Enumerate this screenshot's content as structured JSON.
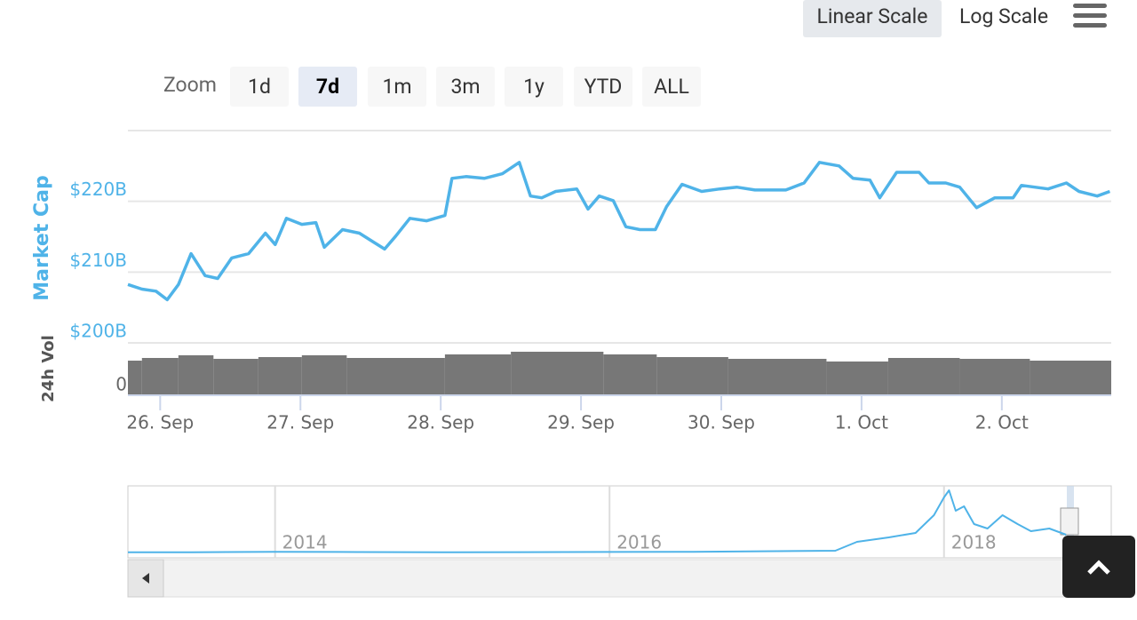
{
  "ui": {
    "scale_buttons": [
      "Linear Scale",
      "Log Scale"
    ],
    "zoom_label": "Zoom",
    "zoom_buttons": [
      "1d",
      "7d",
      "1m",
      "3m",
      "1y",
      "YTD",
      "ALL"
    ]
  },
  "chart_data": [
    {
      "type": "line",
      "y_label": "Market Cap",
      "x": [
        -0.23,
        -0.13,
        -0.03,
        0.05,
        0.13,
        0.22,
        0.32,
        0.41,
        0.51,
        0.63,
        0.75,
        0.82,
        0.9,
        1.01,
        1.11,
        1.17,
        1.3,
        1.42,
        1.52,
        1.6,
        1.68,
        1.78,
        1.9,
        2.03,
        2.08,
        2.18,
        2.31,
        2.44,
        2.56,
        2.64,
        2.72,
        2.82,
        2.97,
        3.05,
        3.13,
        3.23,
        3.32,
        3.42,
        3.53,
        3.61,
        3.72,
        3.86,
        3.99,
        4.11,
        4.24,
        4.34,
        4.46,
        4.59,
        4.7,
        4.84,
        4.94,
        5.06,
        5.13,
        5.25,
        5.41,
        5.48,
        5.6,
        5.7,
        5.82,
        5.95,
        6.08,
        6.14,
        6.33,
        6.46,
        6.55,
        6.68,
        6.77
      ],
      "series": [
        {
          "color": "#4fb3e8",
          "values": [
            208.25,
            207.6,
            207.3,
            206.1,
            208.25,
            212.6,
            209.5,
            209.1,
            212,
            212.6,
            215.5,
            213.9,
            217.6,
            216.75,
            217,
            213.5,
            216,
            215.5,
            214.25,
            213.25,
            215.1,
            217.6,
            217.25,
            218,
            223.25,
            223.5,
            223.25,
            223.9,
            225.5,
            220.75,
            220.5,
            221.4,
            221.75,
            218.9,
            220.75,
            220.1,
            216.4,
            216,
            216,
            219.25,
            222.4,
            221.4,
            221.75,
            222,
            221.6,
            221.6,
            221.6,
            222.6,
            225.5,
            225,
            223.25,
            223,
            220.5,
            224.1,
            224.1,
            222.6,
            222.6,
            222,
            219.1,
            220.5,
            220.5,
            222.25,
            221.75,
            222.6,
            221.4,
            220.75,
            221.4
          ]
        }
      ],
      "xlim": [
        -0.23,
        6.78
      ],
      "ylim": [
        200,
        230
      ],
      "yticks": [
        {
          "value": 200,
          "label": "$200B"
        },
        {
          "value": 210,
          "label": "$210B"
        },
        {
          "value": 220,
          "label": "$220B"
        }
      ],
      "xticks": [
        {
          "value": 0,
          "label": "26. Sep"
        },
        {
          "value": 1,
          "label": "27. Sep"
        },
        {
          "value": 2,
          "label": "28. Sep"
        },
        {
          "value": 3,
          "label": "29. Sep"
        },
        {
          "value": 4,
          "label": "30. Sep"
        },
        {
          "value": 5,
          "label": "1. Oct"
        },
        {
          "value": 6,
          "label": "2. Oct"
        }
      ],
      "grid": true
    },
    {
      "type": "column",
      "y_label": "24h Vol",
      "x": [
        -0.23,
        -0.13,
        0.13,
        0.38,
        0.7,
        1.01,
        1.33,
        2.03,
        2.5,
        3.16,
        3.54,
        4.05,
        4.75,
        5.19,
        5.7,
        6.2
      ],
      "values": [
        65.5,
        70.7,
        75.9,
        69,
        72.4,
        75.9,
        70.7,
        77.6,
        82.8,
        77.6,
        72.4,
        69,
        63.8,
        70.7,
        69,
        65.5
      ],
      "color": "#777777",
      "xlim": [
        -0.23,
        6.78
      ],
      "ylim": [
        0,
        100
      ],
      "yticks": [
        0
      ]
    },
    {
      "type": "line",
      "x": [
        2013.12,
        2013.5,
        2014.0,
        2014.5,
        2015.0,
        2015.5,
        2016.0,
        2016.5,
        2017.0,
        2017.35,
        2017.48,
        2017.67,
        2017.83,
        2017.94,
        2018.0,
        2018.03,
        2018.07,
        2018.12,
        2018.18,
        2018.26,
        2018.35,
        2018.44,
        2018.52,
        2018.63,
        2018.73
      ],
      "series": [
        {
          "color": "#4fb3e8",
          "values": [
            2,
            2,
            10,
            6,
            4,
            5,
            7,
            10,
            18,
            24,
            144,
            204,
            264,
            504,
            744,
            840,
            564,
            624,
            384,
            324,
            504,
            384,
            288,
            324,
            240
          ]
        }
      ],
      "xlim": [
        2013.12,
        2019.0
      ],
      "ylim": [
        0,
        900
      ],
      "xticks": [
        2014,
        2016,
        2018
      ]
    }
  ]
}
